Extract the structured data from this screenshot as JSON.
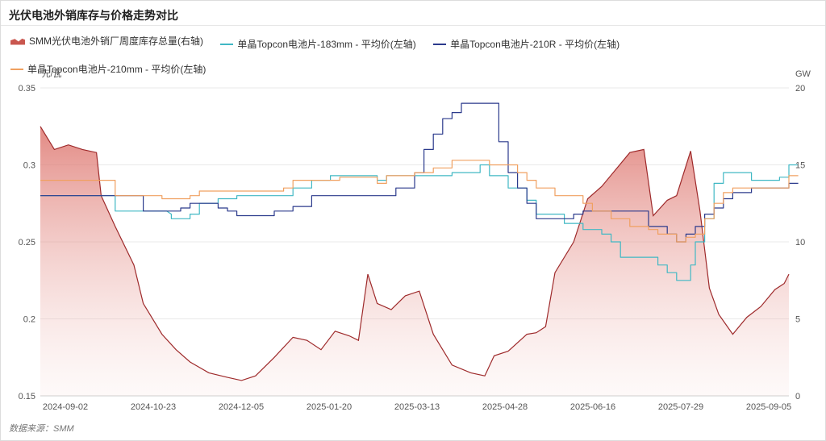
{
  "title": "光伏电池外销库存与价格走势对比",
  "source": "数据来源：SMM",
  "legend": [
    {
      "label": "SMM光伏电池外销厂周度库存总量(右轴)",
      "color": "#c9574f",
      "type": "area"
    },
    {
      "label": "单晶Topcon电池片-183mm - 平均价(左轴)",
      "color": "#40b8c4",
      "type": "line"
    },
    {
      "label": "单晶Topcon电池片-210R - 平均价(左轴)",
      "color": "#2b3a8c",
      "type": "line"
    },
    {
      "label": "单晶Topcon电池片-210mm - 平均价(左轴)",
      "color": "#f0a060",
      "type": "line"
    }
  ],
  "chart_data": {
    "type": "line",
    "y_left": {
      "unit": "元/瓦",
      "ticks": [
        "0.35",
        "0.3",
        "0.25",
        "0.2",
        "0.15"
      ],
      "range": [
        0.15,
        0.35
      ]
    },
    "y_right": {
      "unit": "GW",
      "ticks": [
        "20",
        "15",
        "10",
        "5",
        "0"
      ],
      "range": [
        0,
        20
      ]
    },
    "x_ticks": [
      "2024-09-02",
      "2024-10-23",
      "2024-12-05",
      "2025-01-20",
      "2025-03-13",
      "2025-04-28",
      "2025-06-16",
      "2025-07-29",
      "2025-09-05"
    ],
    "x_range": [
      0,
      78
    ],
    "grid": true,
    "series": [
      {
        "name": "SMM光伏电池外销厂周度库存总量(右轴)",
        "axis": "right",
        "type": "area",
        "color": "#9e2a2b",
        "points": [
          [
            0,
            17.5
          ],
          [
            1.5,
            16.0
          ],
          [
            3,
            16.3
          ],
          [
            4.5,
            16.0
          ],
          [
            6,
            15.8
          ],
          [
            6.5,
            13.0
          ],
          [
            8,
            11.0
          ],
          [
            10,
            8.5
          ],
          [
            11,
            6.0
          ],
          [
            13,
            4.0
          ],
          [
            14.5,
            3.0
          ],
          [
            16,
            2.2
          ],
          [
            18,
            1.5
          ],
          [
            20,
            1.2
          ],
          [
            21.5,
            1.0
          ],
          [
            23,
            1.3
          ],
          [
            25,
            2.5
          ],
          [
            27,
            3.8
          ],
          [
            28.5,
            3.6
          ],
          [
            30,
            3.0
          ],
          [
            31.5,
            4.2
          ],
          [
            33,
            3.9
          ],
          [
            34,
            3.6
          ],
          [
            35,
            7.9
          ],
          [
            36,
            6.0
          ],
          [
            37.5,
            5.6
          ],
          [
            39,
            6.5
          ],
          [
            40.5,
            6.8
          ],
          [
            42,
            4.0
          ],
          [
            44,
            2.0
          ],
          [
            46,
            1.5
          ],
          [
            47.5,
            1.3
          ],
          [
            48.5,
            2.6
          ],
          [
            50,
            2.9
          ],
          [
            52,
            4.0
          ],
          [
            53,
            4.1
          ],
          [
            54,
            4.5
          ],
          [
            55,
            8.0
          ],
          [
            57,
            10.0
          ],
          [
            58.5,
            12.8
          ],
          [
            60,
            13.6
          ],
          [
            61.5,
            14.7
          ],
          [
            63,
            15.8
          ],
          [
            64.5,
            16.0
          ],
          [
            65.5,
            11.7
          ],
          [
            67,
            12.7
          ],
          [
            68,
            13.0
          ],
          [
            69.5,
            15.9
          ],
          [
            70.5,
            12.0
          ],
          [
            71.5,
            7.0
          ],
          [
            72.5,
            5.3
          ],
          [
            74,
            4.0
          ],
          [
            75.5,
            5.1
          ],
          [
            77,
            5.8
          ],
          [
            78.5,
            6.9
          ],
          [
            79.5,
            7.3
          ],
          [
            80,
            7.9
          ]
        ]
      },
      {
        "name": "单晶Topcon电池片-183mm - 平均价(左轴)",
        "axis": "left",
        "type": "line",
        "color": "#40b8c4",
        "points": [
          [
            0,
            0.28
          ],
          [
            7,
            0.28
          ],
          [
            8,
            0.28
          ],
          [
            8,
            0.27
          ],
          [
            13.5,
            0.27
          ],
          [
            13.5,
            0.27
          ],
          [
            14,
            0.268
          ],
          [
            14,
            0.265
          ],
          [
            16,
            0.265
          ],
          [
            16,
            0.268
          ],
          [
            17,
            0.268
          ],
          [
            17,
            0.275
          ],
          [
            19,
            0.275
          ],
          [
            19,
            0.278
          ],
          [
            21,
            0.278
          ],
          [
            21,
            0.28
          ],
          [
            26,
            0.28
          ],
          [
            26,
            0.28
          ],
          [
            27,
            0.28
          ],
          [
            27,
            0.285
          ],
          [
            29,
            0.285
          ],
          [
            29,
            0.29
          ],
          [
            31,
            0.29
          ],
          [
            31,
            0.293
          ],
          [
            36,
            0.293
          ],
          [
            36,
            0.29
          ],
          [
            37,
            0.29
          ],
          [
            37,
            0.293
          ],
          [
            44,
            0.293
          ],
          [
            44,
            0.295
          ],
          [
            46,
            0.295
          ],
          [
            46,
            0.295
          ],
          [
            47,
            0.295
          ],
          [
            47,
            0.3
          ],
          [
            48,
            0.3
          ],
          [
            48,
            0.293
          ],
          [
            50,
            0.293
          ],
          [
            50,
            0.285
          ],
          [
            52,
            0.285
          ],
          [
            52,
            0.277
          ],
          [
            53,
            0.277
          ],
          [
            53,
            0.268
          ],
          [
            56,
            0.268
          ],
          [
            56,
            0.262
          ],
          [
            58,
            0.262
          ],
          [
            58,
            0.258
          ],
          [
            60,
            0.258
          ],
          [
            60,
            0.255
          ],
          [
            61,
            0.255
          ],
          [
            61,
            0.25
          ],
          [
            62,
            0.25
          ],
          [
            62,
            0.24
          ],
          [
            66,
            0.24
          ],
          [
            66,
            0.235
          ],
          [
            67,
            0.235
          ],
          [
            67,
            0.23
          ],
          [
            68,
            0.23
          ],
          [
            68,
            0.225
          ],
          [
            69.5,
            0.225
          ],
          [
            69.5,
            0.235
          ],
          [
            70,
            0.235
          ],
          [
            70,
            0.25
          ],
          [
            71,
            0.25
          ],
          [
            71,
            0.265
          ],
          [
            72,
            0.265
          ],
          [
            72,
            0.288
          ],
          [
            73,
            0.288
          ],
          [
            73,
            0.295
          ],
          [
            75,
            0.295
          ],
          [
            75,
            0.295
          ],
          [
            76,
            0.295
          ],
          [
            76,
            0.29
          ],
          [
            79,
            0.29
          ],
          [
            79,
            0.292
          ],
          [
            80,
            0.292
          ],
          [
            80,
            0.3
          ],
          [
            81,
            0.3
          ]
        ]
      },
      {
        "name": "单晶Topcon电池片-210R - 平均价(左轴)",
        "axis": "left",
        "type": "line",
        "color": "#2b3a8c",
        "points": [
          [
            0,
            0.28
          ],
          [
            11,
            0.28
          ],
          [
            11,
            0.27
          ],
          [
            15,
            0.27
          ],
          [
            15,
            0.272
          ],
          [
            16,
            0.272
          ],
          [
            16,
            0.275
          ],
          [
            19,
            0.275
          ],
          [
            19,
            0.272
          ],
          [
            20,
            0.272
          ],
          [
            20,
            0.27
          ],
          [
            21,
            0.27
          ],
          [
            21,
            0.267
          ],
          [
            25,
            0.267
          ],
          [
            25,
            0.27
          ],
          [
            27,
            0.27
          ],
          [
            27,
            0.273
          ],
          [
            29,
            0.273
          ],
          [
            29,
            0.28
          ],
          [
            37,
            0.28
          ],
          [
            37,
            0.28
          ],
          [
            38,
            0.28
          ],
          [
            38,
            0.285
          ],
          [
            40,
            0.285
          ],
          [
            40,
            0.295
          ],
          [
            41,
            0.295
          ],
          [
            41,
            0.31
          ],
          [
            42,
            0.31
          ],
          [
            42,
            0.32
          ],
          [
            43,
            0.32
          ],
          [
            43,
            0.33
          ],
          [
            44,
            0.33
          ],
          [
            44,
            0.334
          ],
          [
            45,
            0.334
          ],
          [
            45,
            0.34
          ],
          [
            48,
            0.34
          ],
          [
            48,
            0.34
          ],
          [
            49,
            0.34
          ],
          [
            49,
            0.315
          ],
          [
            50,
            0.315
          ],
          [
            50,
            0.295
          ],
          [
            51,
            0.295
          ],
          [
            51,
            0.285
          ],
          [
            52,
            0.285
          ],
          [
            52,
            0.275
          ],
          [
            53,
            0.275
          ],
          [
            53,
            0.265
          ],
          [
            57,
            0.265
          ],
          [
            57,
            0.268
          ],
          [
            58,
            0.268
          ],
          [
            58,
            0.27
          ],
          [
            65,
            0.27
          ],
          [
            65,
            0.26
          ],
          [
            67,
            0.26
          ],
          [
            67,
            0.255
          ],
          [
            68,
            0.255
          ],
          [
            68,
            0.25
          ],
          [
            69,
            0.25
          ],
          [
            69,
            0.255
          ],
          [
            70,
            0.255
          ],
          [
            70,
            0.26
          ],
          [
            71,
            0.26
          ],
          [
            71,
            0.268
          ],
          [
            72,
            0.268
          ],
          [
            72,
            0.272
          ],
          [
            73,
            0.272
          ],
          [
            73,
            0.278
          ],
          [
            74,
            0.278
          ],
          [
            74,
            0.282
          ],
          [
            76,
            0.282
          ],
          [
            76,
            0.285
          ],
          [
            80,
            0.285
          ],
          [
            80,
            0.288
          ],
          [
            81,
            0.288
          ]
        ]
      },
      {
        "name": "单晶Topcon电池片-210mm - 平均价(左轴)",
        "axis": "left",
        "type": "line",
        "color": "#f0a060",
        "points": [
          [
            0,
            0.29
          ],
          [
            8,
            0.29
          ],
          [
            8,
            0.28
          ],
          [
            13,
            0.28
          ],
          [
            13,
            0.278
          ],
          [
            16,
            0.278
          ],
          [
            16,
            0.28
          ],
          [
            17,
            0.28
          ],
          [
            17,
            0.283
          ],
          [
            26,
            0.283
          ],
          [
            26,
            0.285
          ],
          [
            27,
            0.285
          ],
          [
            27,
            0.29
          ],
          [
            31,
            0.29
          ],
          [
            31,
            0.29
          ],
          [
            32,
            0.29
          ],
          [
            32,
            0.292
          ],
          [
            36,
            0.292
          ],
          [
            36,
            0.288
          ],
          [
            37,
            0.288
          ],
          [
            37,
            0.293
          ],
          [
            40,
            0.293
          ],
          [
            40,
            0.295
          ],
          [
            42,
            0.295
          ],
          [
            42,
            0.298
          ],
          [
            44,
            0.298
          ],
          [
            44,
            0.303
          ],
          [
            47,
            0.303
          ],
          [
            47,
            0.303
          ],
          [
            48,
            0.303
          ],
          [
            48,
            0.3
          ],
          [
            51,
            0.3
          ],
          [
            51,
            0.295
          ],
          [
            52,
            0.295
          ],
          [
            52,
            0.29
          ],
          [
            53,
            0.29
          ],
          [
            53,
            0.285
          ],
          [
            55,
            0.285
          ],
          [
            55,
            0.28
          ],
          [
            58,
            0.28
          ],
          [
            58,
            0.275
          ],
          [
            59,
            0.275
          ],
          [
            59,
            0.27
          ],
          [
            61,
            0.27
          ],
          [
            61,
            0.265
          ],
          [
            63,
            0.265
          ],
          [
            63,
            0.26
          ],
          [
            65,
            0.26
          ],
          [
            65,
            0.258
          ],
          [
            66,
            0.258
          ],
          [
            66,
            0.255
          ],
          [
            68,
            0.255
          ],
          [
            68,
            0.25
          ],
          [
            69,
            0.25
          ],
          [
            69,
            0.253
          ],
          [
            70,
            0.253
          ],
          [
            70,
            0.255
          ],
          [
            71,
            0.255
          ],
          [
            71,
            0.265
          ],
          [
            72,
            0.265
          ],
          [
            72,
            0.275
          ],
          [
            73,
            0.275
          ],
          [
            73,
            0.282
          ],
          [
            74,
            0.282
          ],
          [
            74,
            0.285
          ],
          [
            80,
            0.285
          ],
          [
            80,
            0.293
          ],
          [
            81,
            0.293
          ]
        ]
      }
    ]
  }
}
